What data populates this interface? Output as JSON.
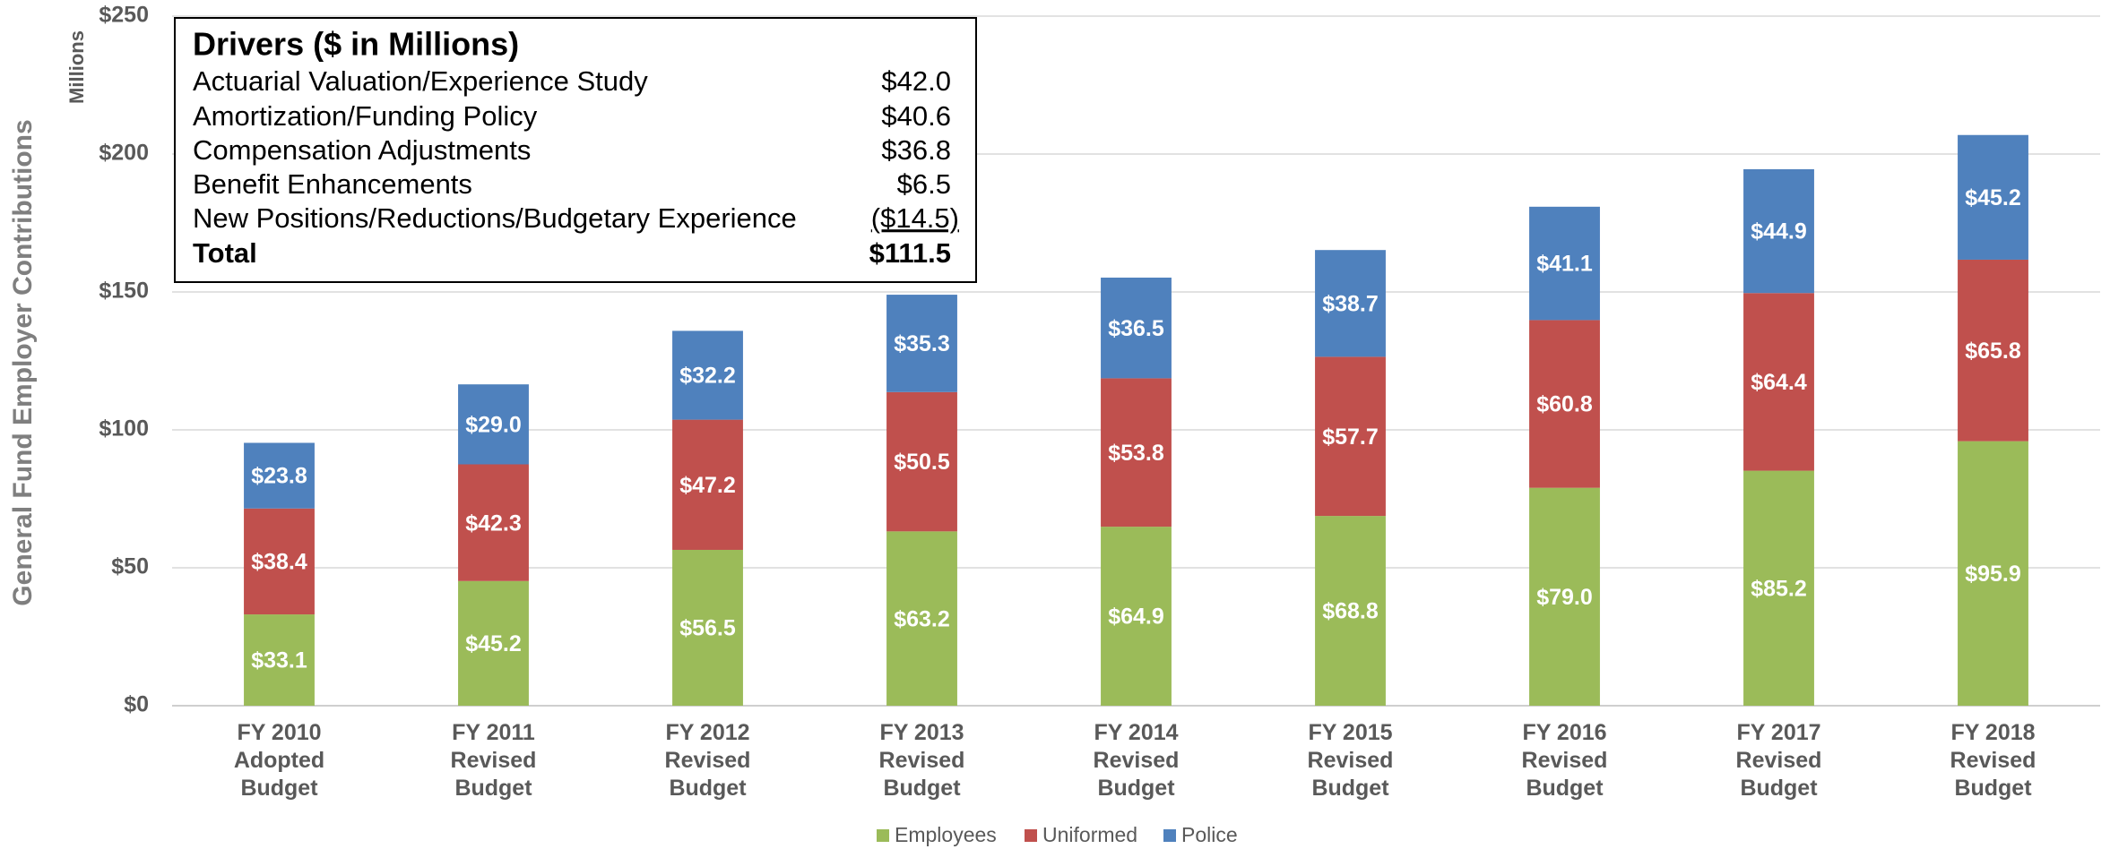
{
  "chart_data": {
    "type": "stacked-bar",
    "y_label": "General Fund Employer Contributions",
    "y_unit": "Millions",
    "categories": [
      "FY 2010\nAdopted\nBudget",
      "FY 2011\nRevised\nBudget",
      "FY 2012\nRevised\nBudget",
      "FY 2013\nRevised\nBudget",
      "FY 2014\nRevised\nBudget",
      "FY 2015\nRevised\nBudget",
      "FY 2016\nRevised\nBudget",
      "FY 2017\nRevised\nBudget",
      "FY 2018\nRevised\nBudget"
    ],
    "series": [
      {
        "name": "Employees",
        "color": "#9bbb59",
        "values": [
          33.1,
          45.2,
          56.5,
          63.2,
          64.9,
          68.8,
          79.0,
          85.2,
          95.9
        ],
        "value_labels": [
          "$33.1",
          "$45.2",
          "$56.5",
          "$63.2",
          "$64.9",
          "$68.8",
          "$79.0",
          "$85.2",
          "$95.9"
        ]
      },
      {
        "name": "Uniformed",
        "color": "#c0504d",
        "values": [
          38.4,
          42.3,
          47.2,
          50.5,
          53.8,
          57.7,
          60.8,
          64.4,
          65.8
        ],
        "value_labels": [
          "$38.4",
          "$42.3",
          "$47.2",
          "$50.5",
          "$53.8",
          "$57.7",
          "$60.8",
          "$64.4",
          "$65.8"
        ]
      },
      {
        "name": "Police",
        "color": "#4f81bd",
        "values": [
          23.8,
          29.0,
          32.2,
          35.3,
          36.5,
          38.7,
          41.1,
          44.9,
          45.2
        ],
        "value_labels": [
          "$23.8",
          "$29.0",
          "$32.2",
          "$35.3",
          "$36.5",
          "$38.7",
          "$41.1",
          "$44.9",
          "$45.2"
        ]
      }
    ],
    "ylim": [
      0,
      250
    ],
    "yticks": [
      {
        "value": 0,
        "label": "$0"
      },
      {
        "value": 50,
        "label": "$50"
      },
      {
        "value": 100,
        "label": "$100"
      },
      {
        "value": 150,
        "label": "$150"
      },
      {
        "value": 200,
        "label": "$200"
      },
      {
        "value": 250,
        "label": "$250"
      }
    ],
    "grid": true,
    "legend": "bottom",
    "drivers_table": {
      "title": "Drivers ($ in Millions)",
      "rows": [
        [
          "Actuarial Valuation/Experience Study",
          "$42.0"
        ],
        [
          "Amortization/Funding Policy",
          "$40.6"
        ],
        [
          "Compensation Adjustments",
          "$36.8"
        ],
        [
          "Benefit Enhancements",
          "$6.5"
        ],
        [
          "New Positions/Reductions/Budgetary Experience",
          "($14.5)"
        ]
      ],
      "total": [
        "Total",
        "$111.5"
      ]
    }
  }
}
